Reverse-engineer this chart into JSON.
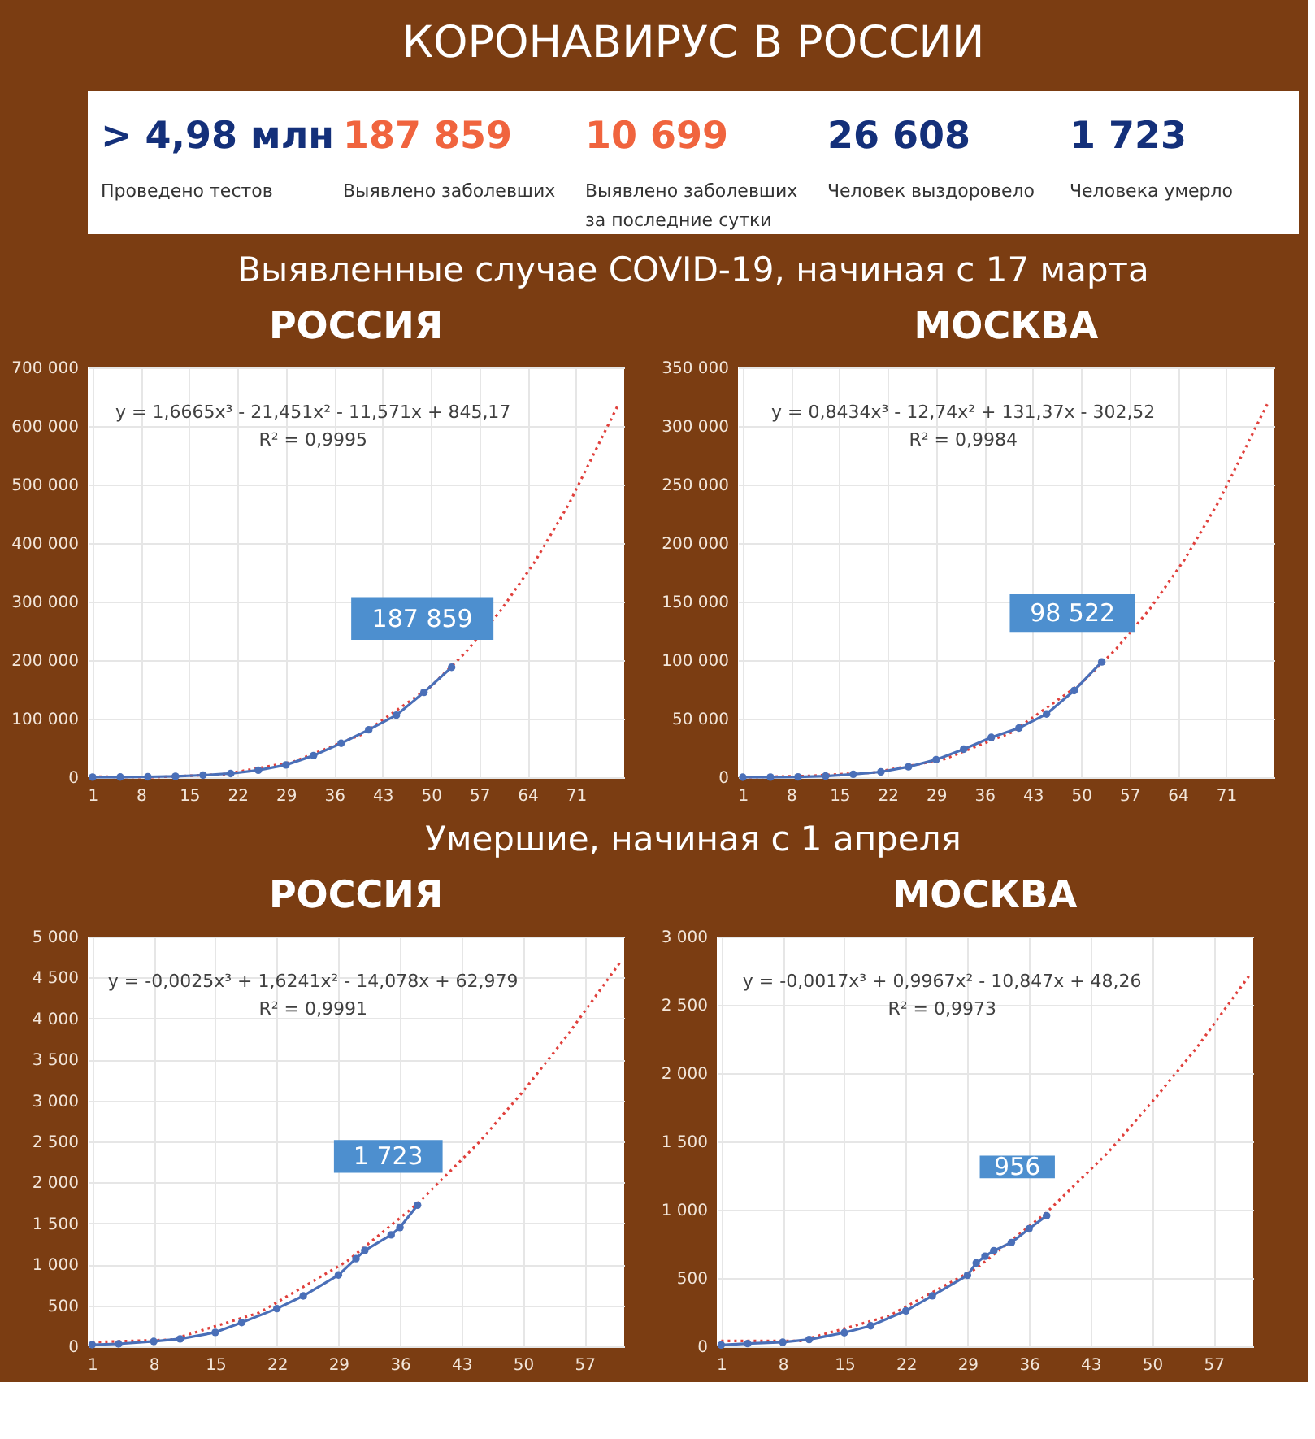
{
  "chart_data": [
    {
      "type": "other",
      "title": "КОРОНАВИРУС В РОССИИ",
      "annotations": [
        "> 4,98 млн",
        "Проведено тестов",
        "187 859",
        "Выявлено заболевших",
        "10 699",
        "Выявлено заболевших\nза последние сутки",
        "26 608",
        "Человек выздоровело",
        "1 723",
        "Человека умерло"
      ],
      "colors": [
        "#14307a",
        "#f0643e",
        "#f0643e",
        "#14307a",
        "#14307a"
      ]
    },
    {
      "type": "line",
      "title": "РОССИЯ",
      "subtitle": "Выявленные случае COVID-19, начиная с 17 марта",
      "annotations": [
        "y = 1,6665x³ - 21,451x² - 11,571x + 845,17",
        "R² = 0,9995"
      ],
      "xlim": [
        0.3,
        78
      ],
      "xticks": [
        1,
        8,
        15,
        22,
        29,
        36,
        43,
        50,
        57,
        64,
        71
      ],
      "ylim": [
        0,
        700000
      ],
      "yticks": [
        0,
        {
          "value": 100000,
          "label": "100 000"
        },
        {
          "value": 200000,
          "label": "200 000"
        },
        {
          "value": 300000,
          "label": "300 000"
        },
        {
          "value": 400000,
          "label": "400 000"
        },
        {
          "value": 500000,
          "label": "500 000"
        },
        {
          "value": 600000,
          "label": "600 000"
        },
        {
          "value": 700000,
          "label": "700 000"
        }
      ],
      "grid": true,
      "series": [
        {
          "color": "#e0403c",
          "line_style": "dotted",
          "marker": "none",
          "x": [
            1,
            10,
            20,
            30,
            40,
            50,
            55,
            60,
            65,
            70,
            77
          ],
          "values": [
            1000,
            0,
            5000,
            26000,
            73000,
            155000,
            213000,
            283000,
            367000,
            467000,
            633000
          ]
        },
        {
          "color": "#4a6fb8",
          "line_style": "solid",
          "marker": "circle",
          "x": [
            1,
            5,
            9,
            13,
            17,
            21,
            25,
            29,
            33,
            37,
            41,
            45,
            49,
            53
          ],
          "values": [
            100,
            300,
            700,
            1500,
            3500,
            6300,
            12000,
            21000,
            37000,
            58000,
            81000,
            106000,
            145000,
            187859
          ],
          "value_labels": [
            null,
            null,
            null,
            null,
            null,
            null,
            null,
            null,
            null,
            null,
            null,
            null,
            null,
            "187 859"
          ]
        }
      ]
    },
    {
      "type": "line",
      "title": "МОСКВА",
      "annotations": [
        "y = 0,8434x³ - 12,74x² + 131,37x - 302,52",
        "R² = 0,9984"
      ],
      "xlim": [
        0.3,
        78
      ],
      "xticks": [
        1,
        8,
        15,
        22,
        29,
        36,
        43,
        50,
        57,
        64,
        71
      ],
      "ylim": [
        0,
        350000
      ],
      "yticks": [
        0,
        {
          "value": 50000,
          "label": "50 000"
        },
        {
          "value": 100000,
          "label": "100 000"
        },
        {
          "value": 150000,
          "label": "150 000"
        },
        {
          "value": 200000,
          "label": "200 000"
        },
        {
          "value": 250000,
          "label": "250 000"
        },
        {
          "value": 300000,
          "label": "300 000"
        },
        {
          "value": 350000,
          "label": "350 000"
        }
      ],
      "grid": true,
      "series": [
        {
          "color": "#e0403c",
          "line_style": "dotted",
          "marker": "none",
          "x": [
            1,
            10,
            20,
            30,
            40,
            50,
            55,
            60,
            65,
            70,
            77
          ],
          "values": [
            0,
            1000,
            4000,
            15000,
            38500,
            80000,
            109000,
            144000,
            186000,
            236000,
            319000
          ]
        },
        {
          "color": "#4a6fb8",
          "line_style": "solid",
          "marker": "circle",
          "x": [
            1,
            5,
            9,
            13,
            17,
            21,
            25,
            29,
            33,
            37,
            41,
            45,
            49,
            53
          ],
          "values": [
            0,
            100,
            300,
            1000,
            2500,
            4500,
            8900,
            15000,
            24000,
            34000,
            42000,
            54000,
            74000,
            98522
          ],
          "value_labels": [
            null,
            null,
            null,
            null,
            null,
            null,
            null,
            null,
            null,
            null,
            null,
            null,
            null,
            "98 522"
          ]
        }
      ]
    },
    {
      "type": "line",
      "title": "РОССИЯ",
      "subtitle": "Умершие, начиная с 1 апреля",
      "annotations": [
        "y = -0,0025x³ + 1,6241x² - 14,078x + 62,979",
        "R² = 0,9991"
      ],
      "xlim": [
        0.5,
        61.5
      ],
      "xticks": [
        1,
        8,
        15,
        22,
        29,
        36,
        43,
        50,
        57
      ],
      "ylim": [
        0,
        5000
      ],
      "yticks": [
        0,
        500,
        {
          "value": 1000,
          "label": "1 000"
        },
        {
          "value": 1500,
          "label": "1 500"
        },
        {
          "value": 2000,
          "label": "2 000"
        },
        {
          "value": 2500,
          "label": "2 500"
        },
        {
          "value": 3000,
          "label": "3 000"
        },
        {
          "value": 3500,
          "label": "3 500"
        },
        {
          "value": 4000,
          "label": "4 000"
        },
        {
          "value": 4500,
          "label": "4 500"
        },
        {
          "value": 5000,
          "label": "5 000"
        }
      ],
      "grid": true,
      "series": [
        {
          "color": "#e0403c",
          "line_style": "dotted",
          "marker": "none",
          "x": [
            1,
            10,
            20,
            30,
            38,
            45,
            50,
            55,
            61
          ],
          "values": [
            50,
            80,
            410,
            1040,
            1740,
            2490,
            3110,
            3790,
            4680
          ]
        },
        {
          "color": "#4a6fb8",
          "line_style": "solid",
          "marker": "circle",
          "x": [
            1,
            4,
            8,
            11,
            15,
            18,
            22,
            25,
            29,
            31,
            32,
            35,
            36,
            38
          ],
          "values": [
            20,
            30,
            60,
            90,
            170,
            290,
            460,
            615,
            870,
            1070,
            1170,
            1360,
            1450,
            1723
          ],
          "value_labels": [
            null,
            null,
            null,
            null,
            null,
            null,
            null,
            null,
            null,
            null,
            null,
            null,
            null,
            "1 723"
          ]
        }
      ]
    },
    {
      "type": "line",
      "title": "МОСКВА",
      "annotations": [
        "y = -0,0017x³ + 0,9967x² - 10,847x + 48,26",
        "R² = 0,9973"
      ],
      "xlim": [
        0.5,
        61.5
      ],
      "xticks": [
        1,
        8,
        15,
        22,
        29,
        36,
        43,
        50,
        57
      ],
      "ylim": [
        0,
        3000
      ],
      "yticks": [
        0,
        500,
        {
          "value": 1000,
          "label": "1 000"
        },
        {
          "value": 1500,
          "label": "1 500"
        },
        {
          "value": 2000,
          "label": "2 000"
        },
        {
          "value": 2500,
          "label": "2 500"
        },
        {
          "value": 3000,
          "label": "3 000"
        }
      ],
      "grid": true,
      "series": [
        {
          "color": "#e0403c",
          "line_style": "dotted",
          "marker": "none",
          "x": [
            1,
            10,
            20,
            30,
            38,
            45,
            50,
            55,
            61
          ],
          "values": [
            40,
            40,
            220,
            570,
            980,
            1420,
            1790,
            2180,
            2710
          ]
        },
        {
          "color": "#4a6fb8",
          "line_style": "solid",
          "marker": "circle",
          "x": [
            1,
            4,
            8,
            11,
            15,
            18,
            22,
            25,
            29,
            30,
            31,
            32,
            34,
            36,
            38
          ],
          "values": [
            10,
            20,
            30,
            50,
            100,
            150,
            260,
            370,
            520,
            610,
            660,
            700,
            760,
            860,
            956
          ],
          "value_labels": [
            null,
            null,
            null,
            null,
            null,
            null,
            null,
            null,
            null,
            null,
            null,
            null,
            null,
            null,
            "956"
          ]
        }
      ]
    }
  ]
}
